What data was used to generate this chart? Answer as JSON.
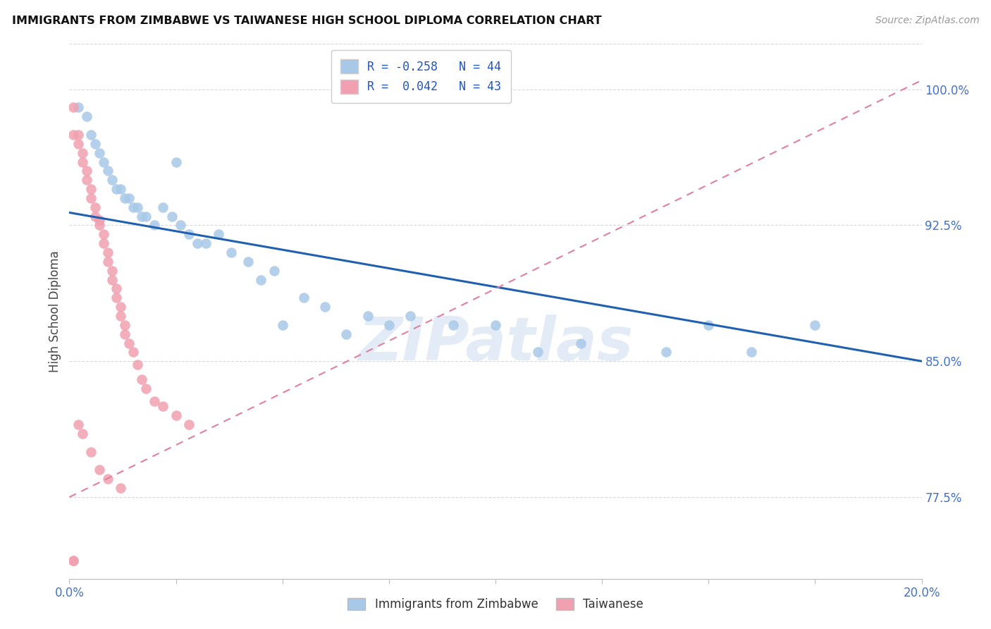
{
  "title": "IMMIGRANTS FROM ZIMBABWE VS TAIWANESE HIGH SCHOOL DIPLOMA CORRELATION CHART",
  "source": "Source: ZipAtlas.com",
  "ylabel": "High School Diploma",
  "xmin": 0.0,
  "xmax": 0.2,
  "ymin": 0.73,
  "ymax": 1.025,
  "yticks": [
    0.775,
    0.85,
    0.925,
    1.0
  ],
  "ytick_labels": [
    "77.5%",
    "85.0%",
    "92.5%",
    "100.0%"
  ],
  "xtick_positions": [
    0.0,
    0.025,
    0.05,
    0.075,
    0.1,
    0.125,
    0.15,
    0.175,
    0.2
  ],
  "xtick_labels": [
    "0.0%",
    "",
    "",
    "",
    "",
    "",
    "",
    "",
    "20.0%"
  ],
  "legend_line1": "R = -0.258   N = 44",
  "legend_line2": "R =  0.042   N = 43",
  "blue_color": "#a8c8e8",
  "pink_color": "#f0a0b0",
  "blue_line_color": "#2060b0",
  "pink_line_color": "#e080a0",
  "blue_line_x": [
    0.0,
    0.2
  ],
  "blue_line_y": [
    0.932,
    0.85
  ],
  "pink_line_x": [
    0.0,
    0.2
  ],
  "pink_line_y": [
    0.775,
    1.005
  ],
  "blue_scatter_x": [
    0.002,
    0.004,
    0.005,
    0.006,
    0.007,
    0.008,
    0.009,
    0.01,
    0.011,
    0.012,
    0.013,
    0.014,
    0.015,
    0.016,
    0.017,
    0.018,
    0.02,
    0.022,
    0.024,
    0.026,
    0.028,
    0.03,
    0.035,
    0.038,
    0.042,
    0.048,
    0.055,
    0.06,
    0.07,
    0.08,
    0.05,
    0.065,
    0.09,
    0.1,
    0.12,
    0.15,
    0.175,
    0.025,
    0.032,
    0.045,
    0.11,
    0.14,
    0.16,
    0.075
  ],
  "blue_scatter_y": [
    0.99,
    0.985,
    0.975,
    0.97,
    0.965,
    0.96,
    0.955,
    0.95,
    0.945,
    0.945,
    0.94,
    0.94,
    0.935,
    0.935,
    0.93,
    0.93,
    0.925,
    0.935,
    0.93,
    0.925,
    0.92,
    0.915,
    0.92,
    0.91,
    0.905,
    0.9,
    0.885,
    0.88,
    0.875,
    0.875,
    0.87,
    0.865,
    0.87,
    0.87,
    0.86,
    0.87,
    0.87,
    0.96,
    0.915,
    0.895,
    0.855,
    0.855,
    0.855,
    0.87
  ],
  "pink_scatter_x": [
    0.001,
    0.001,
    0.002,
    0.002,
    0.003,
    0.003,
    0.004,
    0.004,
    0.005,
    0.005,
    0.006,
    0.006,
    0.007,
    0.007,
    0.008,
    0.008,
    0.009,
    0.009,
    0.01,
    0.01,
    0.011,
    0.011,
    0.012,
    0.012,
    0.013,
    0.013,
    0.014,
    0.015,
    0.016,
    0.017,
    0.018,
    0.02,
    0.022,
    0.025,
    0.028,
    0.003,
    0.005,
    0.007,
    0.009,
    0.012,
    0.001,
    0.002,
    0.001
  ],
  "pink_scatter_y": [
    0.99,
    0.975,
    0.975,
    0.97,
    0.965,
    0.96,
    0.955,
    0.95,
    0.945,
    0.94,
    0.935,
    0.93,
    0.928,
    0.925,
    0.92,
    0.915,
    0.91,
    0.905,
    0.9,
    0.895,
    0.89,
    0.885,
    0.88,
    0.875,
    0.87,
    0.865,
    0.86,
    0.855,
    0.848,
    0.84,
    0.835,
    0.828,
    0.825,
    0.82,
    0.815,
    0.81,
    0.8,
    0.79,
    0.785,
    0.78,
    0.74,
    0.815,
    0.74
  ],
  "watermark": "ZIPatlas",
  "bg_color": "#ffffff",
  "legend_text_color": "#2255bb",
  "axis_tick_color": "#4472c4",
  "grid_color": "#d8d8d8",
  "scatter_size": 110
}
